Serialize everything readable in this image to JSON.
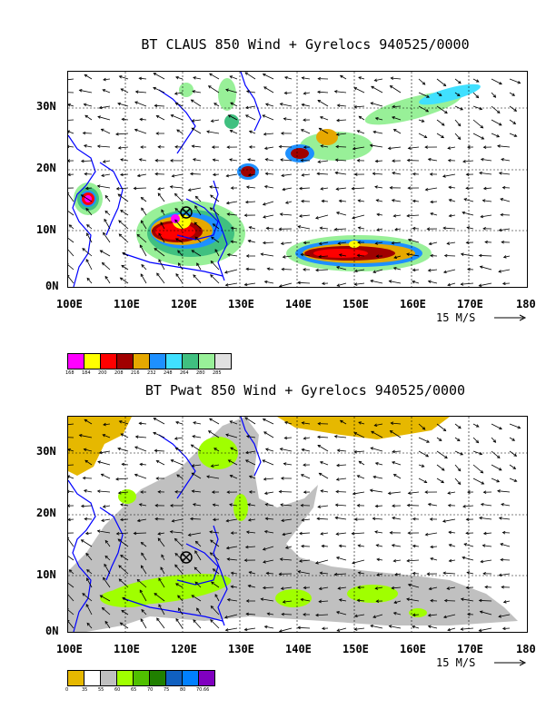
{
  "map1": {
    "title": "BT CLAUS 850 Wind + Gyrelocs 940525/0000",
    "lat_labels": [
      "30N",
      "20N",
      "10N",
      "0N"
    ],
    "lon_labels": [
      "100E",
      "110E",
      "120E",
      "130E",
      "140E",
      "150E",
      "160E",
      "170E",
      "180"
    ],
    "scale_label": "15 M/S",
    "legend_colors": [
      "#ff00ff",
      "#ffff00",
      "#ff0000",
      "#a00000",
      "#e6a800",
      "#1e90ff",
      "#40e0ff",
      "#40c080",
      "#98f098",
      "#e0e0e0"
    ],
    "legend_ticks": [
      "168",
      "184",
      "200",
      "208",
      "216",
      "232",
      "248",
      "264",
      "280",
      "285"
    ]
  },
  "map2": {
    "title": "BT Pwat 850 Wind + Gyrelocs 940525/0000",
    "lat_labels": [
      "30N",
      "20N",
      "10N",
      "0N"
    ],
    "lon_labels": [
      "100E",
      "110E",
      "120E",
      "130E",
      "140E",
      "150E",
      "160E",
      "170E",
      "180"
    ],
    "scale_label": "15 M/S",
    "legend_colors": [
      "#e6b800",
      "#ffffff",
      "#c0c0c0",
      "#a0ff00",
      "#50c000",
      "#208000",
      "#1060c0",
      "#0080ff",
      "#8000c0"
    ],
    "legend_ticks": [
      "0",
      "35",
      "55",
      "60",
      "65",
      "70",
      "75",
      "80",
      "70.66"
    ]
  }
}
